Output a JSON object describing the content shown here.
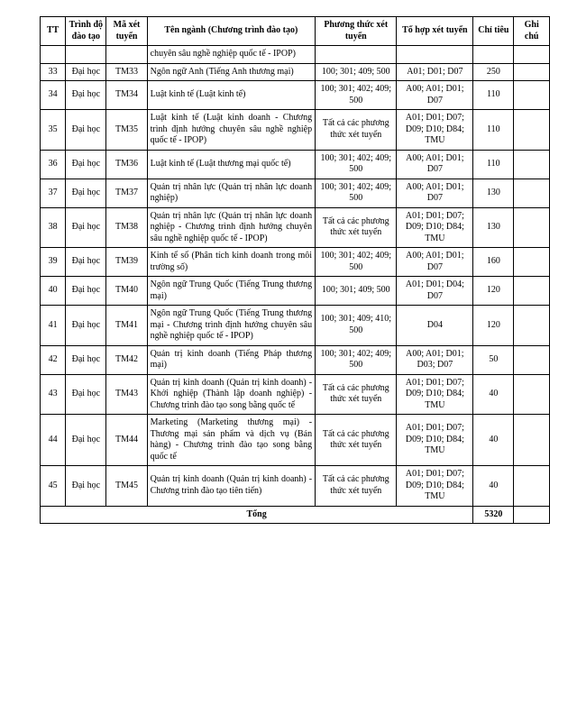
{
  "columns": {
    "tt": "TT",
    "trinh": "Trình độ đào tạo",
    "ma": "Mã xét tuyển",
    "ten": "Tên ngành (Chương trình đào tạo)",
    "phuong": "Phương thức xét tuyển",
    "tohop": "Tổ hợp xét tuyển",
    "chi": "Chỉ tiêu",
    "ghi": "Ghi chú"
  },
  "rows": [
    {
      "tt": "",
      "trinh": "",
      "ma": "",
      "ten": "chuyên sâu nghề nghiệp quốc tế - IPOP)",
      "phuong": "",
      "tohop": "",
      "chi": "",
      "ghi": ""
    },
    {
      "tt": "33",
      "trinh": "Đại học",
      "ma": "TM33",
      "ten": "Ngôn ngữ Anh (Tiếng Anh thương mại)",
      "phuong": "100; 301; 409; 500",
      "tohop": "A01; D01; D07",
      "chi": "250",
      "ghi": ""
    },
    {
      "tt": "34",
      "trinh": "Đại học",
      "ma": "TM34",
      "ten": "Luật kinh tế (Luật kinh tế)",
      "phuong": "100; 301; 402; 409; 500",
      "tohop": "A00; A01; D01; D07",
      "chi": "110",
      "ghi": ""
    },
    {
      "tt": "35",
      "trinh": "Đại học",
      "ma": "TM35",
      "ten": "Luật kinh tế (Luật kinh doanh - Chương trình định hướng chuyên sâu nghề nghiệp quốc tế - IPOP)",
      "phuong": "Tất cả các phương thức xét tuyển",
      "tohop": "A01; D01; D07; D09; D10; D84; TMU",
      "chi": "110",
      "ghi": ""
    },
    {
      "tt": "36",
      "trinh": "Đại học",
      "ma": "TM36",
      "ten": "Luật kinh tế (Luật thương mại quốc tế)",
      "phuong": "100; 301; 402; 409; 500",
      "tohop": "A00; A01; D01; D07",
      "chi": "110",
      "ghi": ""
    },
    {
      "tt": "37",
      "trinh": "Đại học",
      "ma": "TM37",
      "ten": "Quản trị nhân lực (Quản trị nhân lực doanh nghiệp)",
      "phuong": "100; 301; 402; 409; 500",
      "tohop": "A00; A01; D01; D07",
      "chi": "130",
      "ghi": ""
    },
    {
      "tt": "38",
      "trinh": "Đại học",
      "ma": "TM38",
      "ten": "Quản trị nhân lực (Quản trị nhân lực doanh nghiệp - Chương trình định hướng chuyên sâu nghề nghiệp quốc tế - IPOP)",
      "phuong": "Tất cả các phương thức xét tuyển",
      "tohop": "A01; D01; D07; D09; D10; D84; TMU",
      "chi": "130",
      "ghi": ""
    },
    {
      "tt": "39",
      "trinh": "Đại học",
      "ma": "TM39",
      "ten": "Kinh tế số (Phân tích kinh doanh trong môi trường số)",
      "phuong": "100; 301; 402; 409; 500",
      "tohop": "A00; A01; D01; D07",
      "chi": "160",
      "ghi": ""
    },
    {
      "tt": "40",
      "trinh": "Đại học",
      "ma": "TM40",
      "ten": "Ngôn ngữ Trung Quốc (Tiếng Trung thương mại)",
      "phuong": "100; 301; 409; 500",
      "tohop": "A01; D01; D04; D07",
      "chi": "120",
      "ghi": ""
    },
    {
      "tt": "41",
      "trinh": "Đại học",
      "ma": "TM41",
      "ten": "Ngôn ngữ Trung Quốc (Tiếng Trung thương mại - Chương trình định hướng chuyên sâu nghề nghiệp quốc tế - IPOP)",
      "phuong": "100; 301; 409; 410; 500",
      "tohop": "D04",
      "chi": "120",
      "ghi": ""
    },
    {
      "tt": "42",
      "trinh": "Đại học",
      "ma": "TM42",
      "ten": "Quản trị kinh doanh (Tiếng Pháp thương mại)",
      "phuong": "100; 301; 402; 409; 500",
      "tohop": "A00; A01; D01; D03; D07",
      "chi": "50",
      "ghi": ""
    },
    {
      "tt": "43",
      "trinh": "Đại học",
      "ma": "TM43",
      "ten": "Quản trị kinh doanh (Quản trị kinh doanh) - Khởi nghiệp (Thành lập doanh nghiệp) - Chương trình đào tạo song bằng quốc tế",
      "phuong": "Tất cả các phương thức xét tuyển",
      "tohop": "A01; D01; D07; D09; D10; D84; TMU",
      "chi": "40",
      "ghi": ""
    },
    {
      "tt": "44",
      "trinh": "Đại học",
      "ma": "TM44",
      "ten": "Marketing (Marketing thương mại) - Thương mại sản phẩm và dịch vụ (Bán hàng) - Chương trình đào tạo song bằng quốc tế",
      "phuong": "Tất cả các phương thức xét tuyển",
      "tohop": "A01; D01; D07; D09; D10; D84; TMU",
      "chi": "40",
      "ghi": ""
    },
    {
      "tt": "45",
      "trinh": "Đại học",
      "ma": "TM45",
      "ten": "Quản trị kinh doanh (Quản trị kinh doanh) - Chương trình đào tạo tiên tiến)",
      "phuong": "Tất cả các phương thức xét tuyển",
      "tohop": "A01; D01; D07; D09; D10; D84; TMU",
      "chi": "40",
      "ghi": ""
    }
  ],
  "total": {
    "label": "Tổng",
    "value": "5320"
  }
}
